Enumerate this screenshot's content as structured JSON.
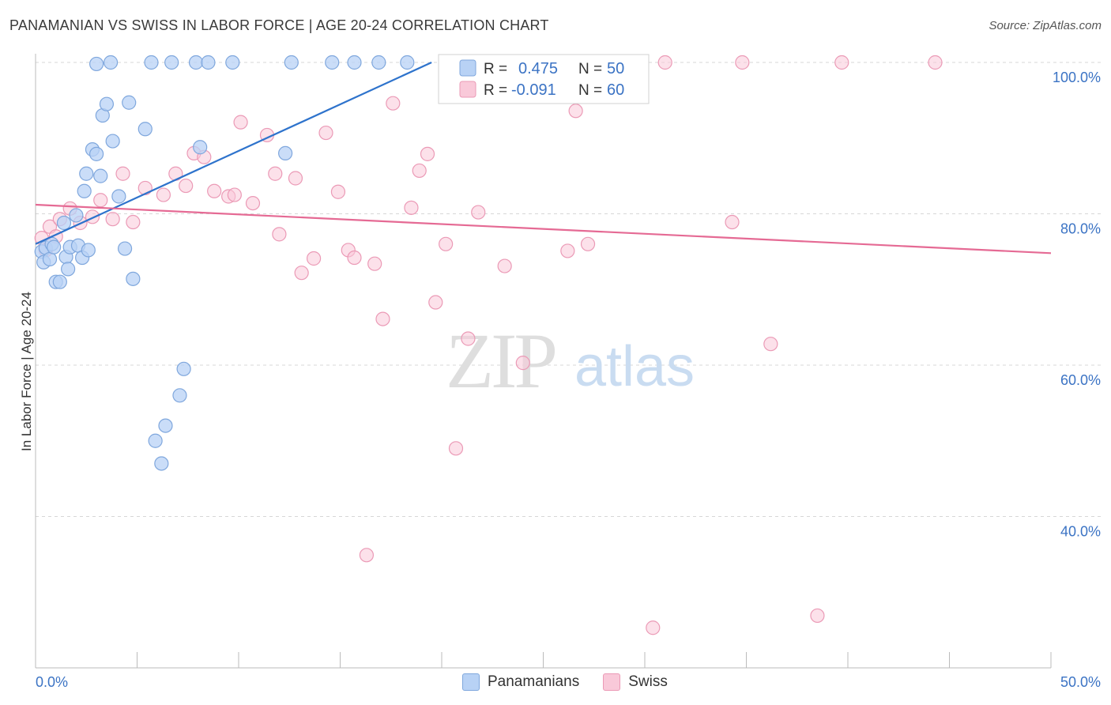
{
  "title": "PANAMANIAN VS SWISS IN LABOR FORCE | AGE 20-24 CORRELATION CHART",
  "source": "Source: ZipAtlas.com",
  "watermark": {
    "zip": "ZIP",
    "atlas": "atlas"
  },
  "colors": {
    "blue_fill": "#b8d2f5",
    "blue_stroke": "#7fa7dd",
    "blue_line": "#2e73cc",
    "blue_text": "#3b73c4",
    "pink_fill": "#f9c9d9",
    "pink_stroke": "#eb9ab6",
    "pink_line": "#e56a94",
    "grid": "#d7d7d7"
  },
  "legend_top": {
    "rows": [
      {
        "series": "Panamanians",
        "r_label": "R =",
        "r_value": "0.475",
        "n_label": "N =",
        "n_value": "50"
      },
      {
        "series": "Swiss",
        "r_label": "R =",
        "r_value": "-0.091",
        "n_label": "N =",
        "n_value": "60"
      }
    ]
  },
  "legend_bottom": [
    "Panamanians",
    "Swiss"
  ],
  "chart_data": {
    "type": "scatter",
    "title": "PANAMANIAN VS SWISS IN LABOR FORCE | AGE 20-24 CORRELATION CHART",
    "xlabel": "",
    "ylabel": "In Labor Force | Age 20-24",
    "xlim": [
      0,
      50
    ],
    "ylim": [
      20,
      104
    ],
    "x_tick_labels": [
      "0.0%",
      "50.0%"
    ],
    "y_ticks": [
      40,
      60,
      80,
      100
    ],
    "y_tick_labels": [
      "40.0%",
      "60.0%",
      "80.0%",
      "100.0%"
    ],
    "grid": true,
    "legend_position": "top-center",
    "series": [
      {
        "name": "Panamanians",
        "r": 0.475,
        "n": 50,
        "trend": {
          "x": [
            0.0,
            19.5
          ],
          "y": [
            76.0,
            100.0
          ]
        },
        "points": [
          [
            0.3,
            75.0
          ],
          [
            0.4,
            73.6
          ],
          [
            0.5,
            75.5
          ],
          [
            0.7,
            74.0
          ],
          [
            0.8,
            76.0
          ],
          [
            0.9,
            75.6
          ],
          [
            1.0,
            71.0
          ],
          [
            1.2,
            71.0
          ],
          [
            1.4,
            78.8
          ],
          [
            1.5,
            74.3
          ],
          [
            1.6,
            72.7
          ],
          [
            1.7,
            75.6
          ],
          [
            2.0,
            79.8
          ],
          [
            2.1,
            75.8
          ],
          [
            2.3,
            74.2
          ],
          [
            2.4,
            83.0
          ],
          [
            2.5,
            85.3
          ],
          [
            2.6,
            75.2
          ],
          [
            2.8,
            88.5
          ],
          [
            3.0,
            87.9
          ],
          [
            3.2,
            85.0
          ],
          [
            3.3,
            93.0
          ],
          [
            3.5,
            94.5
          ],
          [
            3.8,
            89.6
          ],
          [
            4.1,
            82.3
          ],
          [
            4.4,
            75.4
          ],
          [
            4.6,
            94.7
          ],
          [
            4.8,
            71.4
          ],
          [
            5.4,
            91.2
          ],
          [
            5.9,
            50.0
          ],
          [
            6.2,
            47.0
          ],
          [
            6.4,
            52.0
          ],
          [
            7.1,
            56.0
          ],
          [
            7.3,
            59.5
          ],
          [
            8.1,
            88.8
          ],
          [
            12.3,
            88.0
          ],
          [
            3.0,
            99.8
          ],
          [
            3.7,
            100.0
          ],
          [
            5.7,
            100.0
          ],
          [
            6.7,
            100.0
          ],
          [
            7.9,
            100.0
          ],
          [
            8.5,
            100.0
          ],
          [
            9.7,
            100.0
          ],
          [
            12.6,
            100.0
          ],
          [
            14.6,
            100.0
          ],
          [
            15.7,
            100.0
          ],
          [
            16.9,
            100.0
          ],
          [
            18.3,
            100.0
          ],
          [
            20.3,
            100.0
          ],
          [
            23.3,
            100.0
          ]
        ]
      },
      {
        "name": "Swiss",
        "r": -0.091,
        "n": 60,
        "trend": {
          "x": [
            0.0,
            50.0
          ],
          "y": [
            81.2,
            74.8
          ]
        },
        "points": [
          [
            0.3,
            76.8
          ],
          [
            0.5,
            75.2
          ],
          [
            0.7,
            78.3
          ],
          [
            1.0,
            77.0
          ],
          [
            1.2,
            79.3
          ],
          [
            1.7,
            80.7
          ],
          [
            2.2,
            78.8
          ],
          [
            2.8,
            79.6
          ],
          [
            3.2,
            81.8
          ],
          [
            3.8,
            79.3
          ],
          [
            4.3,
            85.3
          ],
          [
            4.8,
            78.9
          ],
          [
            5.4,
            83.4
          ],
          [
            6.3,
            82.5
          ],
          [
            6.9,
            85.3
          ],
          [
            7.4,
            83.7
          ],
          [
            7.8,
            88.0
          ],
          [
            8.3,
            87.5
          ],
          [
            8.8,
            83.0
          ],
          [
            9.5,
            82.3
          ],
          [
            9.8,
            82.5
          ],
          [
            10.1,
            92.1
          ],
          [
            10.7,
            81.4
          ],
          [
            11.4,
            90.4
          ],
          [
            11.8,
            85.3
          ],
          [
            12.0,
            77.3
          ],
          [
            12.8,
            84.7
          ],
          [
            13.1,
            72.2
          ],
          [
            13.7,
            74.1
          ],
          [
            14.3,
            90.7
          ],
          [
            14.9,
            82.9
          ],
          [
            15.4,
            75.2
          ],
          [
            15.7,
            74.2
          ],
          [
            16.3,
            34.9
          ],
          [
            16.7,
            73.4
          ],
          [
            17.1,
            66.1
          ],
          [
            17.6,
            94.6
          ],
          [
            18.5,
            80.8
          ],
          [
            18.9,
            85.7
          ],
          [
            19.3,
            87.9
          ],
          [
            19.7,
            68.3
          ],
          [
            20.2,
            76.0
          ],
          [
            20.7,
            49.0
          ],
          [
            21.3,
            63.5
          ],
          [
            21.8,
            80.2
          ],
          [
            23.1,
            73.1
          ],
          [
            24.0,
            60.3
          ],
          [
            25.2,
            100.0
          ],
          [
            26.2,
            75.1
          ],
          [
            26.6,
            93.6
          ],
          [
            27.2,
            76.0
          ],
          [
            30.4,
            25.3
          ],
          [
            31.0,
            100.0
          ],
          [
            34.8,
            100.0
          ],
          [
            34.3,
            78.9
          ],
          [
            36.2,
            62.8
          ],
          [
            38.5,
            26.9
          ],
          [
            39.7,
            100.0
          ],
          [
            44.3,
            100.0
          ],
          [
            24.7,
            100.0
          ]
        ]
      }
    ]
  }
}
